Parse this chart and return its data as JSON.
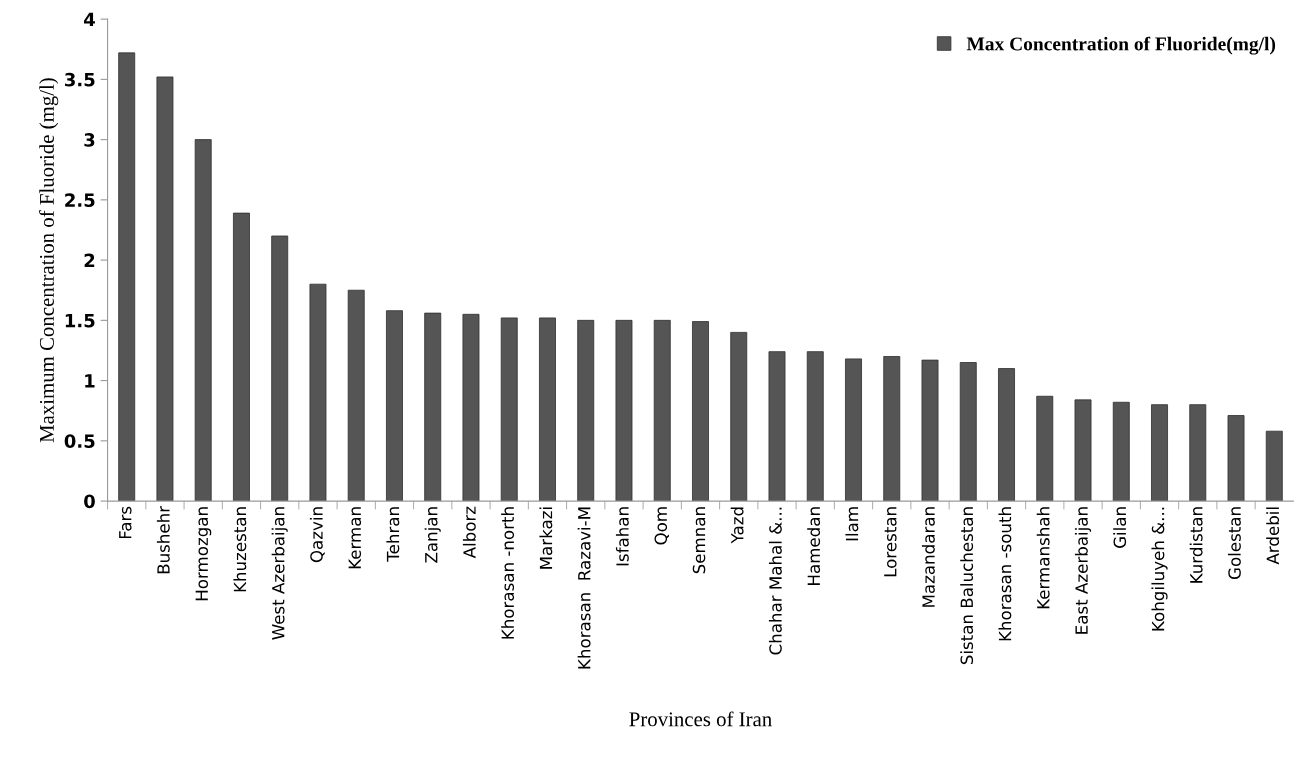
{
  "chart_data": {
    "type": "bar",
    "xlabel": "Provinces of Iran",
    "ylabel": "Maximum Concentration of Fluoride (mg/l)",
    "categories": [
      "Fars",
      "Bushehr",
      "Hormozgan",
      "Khuzestan",
      "West Azerbaijan",
      "Qazvin",
      "Kerman",
      "Tehran",
      "Zanjan",
      "Alborz",
      "Khorasan -north",
      "Markazi",
      "Khorasan  Razavi-M",
      "Isfahan",
      "Qom",
      "Semnan",
      "Yazd",
      "Chahar Mahal &...",
      "Hamedan",
      "Ilam",
      "Lorestan",
      "Mazandaran",
      "Sistan Baluchestan",
      "Khorasan -south",
      "Kermanshah",
      "East Azerbaijan",
      "Gilan",
      "Kohgiluyeh &...",
      "Kurdistan",
      "Golestan",
      "Ardebil"
    ],
    "series": [
      {
        "name": "Max Concentration of Fluoride(mg/l)",
        "color": "#555555",
        "values": [
          3.72,
          3.52,
          3.0,
          2.39,
          2.2,
          1.8,
          1.75,
          1.58,
          1.56,
          1.55,
          1.52,
          1.52,
          1.5,
          1.5,
          1.5,
          1.49,
          1.4,
          1.24,
          1.24,
          1.18,
          1.2,
          1.17,
          1.15,
          1.1,
          0.87,
          0.84,
          0.82,
          0.8,
          0.8,
          0.71,
          0.58
        ]
      }
    ],
    "ylim": [
      0,
      4
    ],
    "yticks": [
      0,
      0.5,
      1,
      1.5,
      2,
      2.5,
      3,
      3.5,
      4
    ],
    "grid": false,
    "legend": "top right"
  }
}
